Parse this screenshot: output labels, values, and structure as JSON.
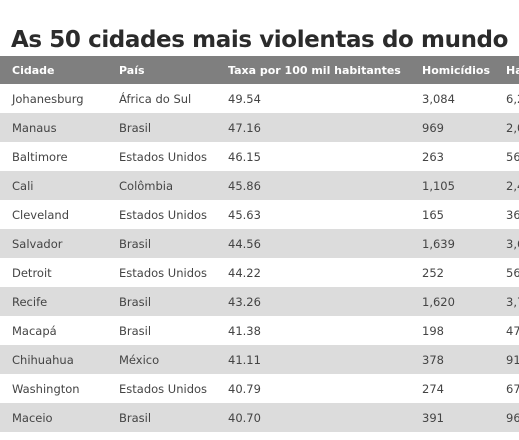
{
  "title": "As 50 cidades mais violentas do mundo",
  "table": {
    "columns": [
      "Cidade",
      "País",
      "Taxa por 100 mil habitantes",
      "Homicídios",
      "Ha"
    ],
    "rows": [
      [
        "Johanesburg",
        "África do Sul",
        "49.54",
        "3,084",
        "6,2"
      ],
      [
        "Manaus",
        "Brasil",
        "47.16",
        "969",
        "2,0"
      ],
      [
        "Baltimore",
        "Estados Unidos",
        "46.15",
        "263",
        "56"
      ],
      [
        "Cali",
        "Colômbia",
        "45.86",
        "1,105",
        "2,4"
      ],
      [
        "Cleveland",
        "Estados Unidos",
        "45.63",
        "165",
        "36"
      ],
      [
        "Salvador",
        "Brasil",
        "44.56",
        "1,639",
        "3,6"
      ],
      [
        "Detroit",
        "Estados Unidos",
        "44.22",
        "252",
        "56"
      ],
      [
        "Recife",
        "Brasil",
        "43.26",
        "1,620",
        "3,7"
      ],
      [
        "Macapá",
        "Brasil",
        "41.38",
        "198",
        "47"
      ],
      [
        "Chihuahua",
        "México",
        "41.11",
        "378",
        "91"
      ],
      [
        "Washington",
        "Estados Unidos",
        "40.79",
        "274",
        "67"
      ],
      [
        "Maceio",
        "Brasil",
        "40.70",
        "391",
        "96"
      ],
      [
        "",
        "",
        "",
        "",
        ""
      ]
    ]
  },
  "colors": {
    "header_bg": "#7f7f7f",
    "header_text": "#ffffff",
    "row_alt_bg": "#dcdcdc",
    "row_bg": "#ffffff",
    "title_text": "#2b2b2b"
  }
}
